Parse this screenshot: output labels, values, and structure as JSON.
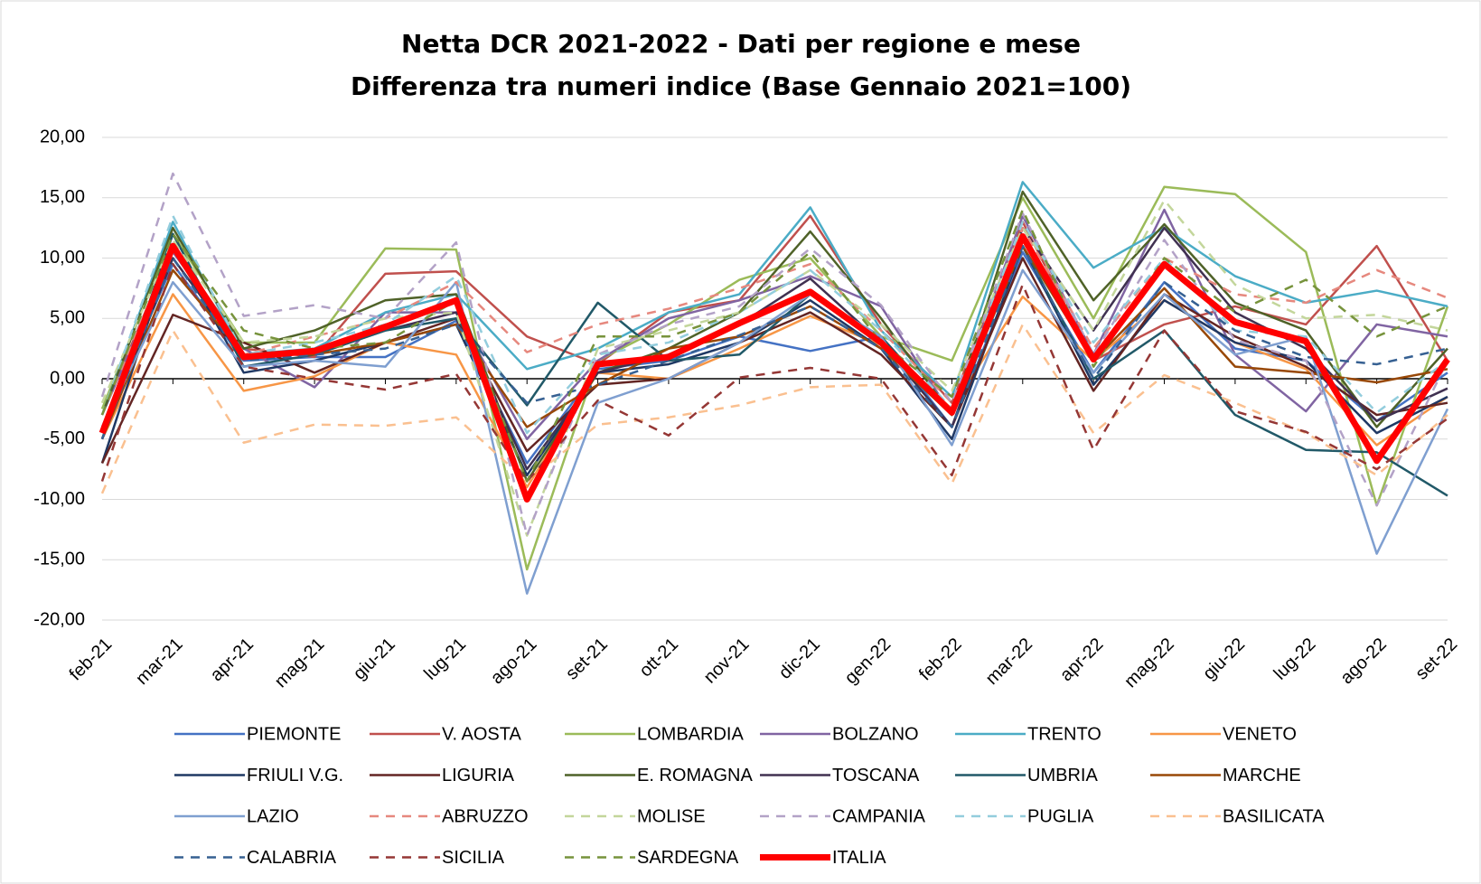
{
  "chart_data": {
    "type": "line",
    "title": [
      "Netta DCR 2021-2022 - Dati per regione e mese",
      "Differenza tra numeri indice (Base Gennaio 2021=100)"
    ],
    "categories": [
      "feb-21",
      "mar-21",
      "apr-21",
      "mag-21",
      "giu-21",
      "lug-21",
      "ago-21",
      "set-21",
      "ott-21",
      "nov-21",
      "dic-21",
      "gen-22",
      "feb-22",
      "mar-22",
      "apr-22",
      "mag-22",
      "giu-22",
      "lug-22",
      "ago-22",
      "set-22"
    ],
    "ylim": [
      -20,
      20
    ],
    "yticks": [
      {
        "value": -20,
        "label": "-20,00"
      },
      {
        "value": -15,
        "label": "-15,00"
      },
      {
        "value": -10,
        "label": "-10,00"
      },
      {
        "value": -5,
        "label": "-5,00"
      },
      {
        "value": 0,
        "label": "0,00"
      },
      {
        "value": 5,
        "label": "5,00"
      },
      {
        "value": 10,
        "label": "10,00"
      },
      {
        "value": 15,
        "label": "15,00"
      },
      {
        "value": 20,
        "label": "20,00"
      }
    ],
    "grid": true,
    "legend": "bottom",
    "series": [
      {
        "name": "PIEMONTE",
        "color": "#4472c4",
        "style": "solid",
        "values": [
          -4,
          9.5,
          1.5,
          1.8,
          1.8,
          4.8,
          -7,
          0.8,
          1.5,
          3.5,
          2.3,
          3.5,
          -4,
          10.5,
          0.5,
          8,
          2.5,
          1.5,
          -3.5,
          0.5
        ]
      },
      {
        "name": "V. AOSTA",
        "color": "#c0504d",
        "style": "solid",
        "values": [
          -3,
          11,
          2.5,
          1.8,
          8.7,
          8.9,
          3.5,
          1.2,
          5.5,
          6.5,
          13.5,
          4.5,
          -2,
          13,
          1.5,
          4.5,
          6,
          4.5,
          11,
          1.5
        ]
      },
      {
        "name": "LOMBARDIA",
        "color": "#9bbb59",
        "style": "solid",
        "values": [
          -2.5,
          12,
          3,
          3,
          10.8,
          10.7,
          -15.8,
          1.5,
          4.5,
          8.2,
          10,
          3.5,
          1.5,
          15,
          5,
          15.9,
          15.3,
          10.5,
          -10.5,
          6
        ]
      },
      {
        "name": "BOLZANO",
        "color": "#8064a2",
        "style": "solid",
        "values": [
          -3,
          10.5,
          2.5,
          -0.7,
          5.5,
          5.5,
          -5,
          1.5,
          5,
          6.5,
          8.5,
          6,
          -3,
          13.5,
          2,
          14,
          2,
          -2.7,
          4.5,
          3.5
        ]
      },
      {
        "name": "TRENTO",
        "color": "#4bacc6",
        "style": "solid",
        "values": [
          -3,
          13,
          2,
          2.5,
          5.5,
          7,
          0.8,
          2.5,
          5.5,
          7,
          14.2,
          4,
          -1.5,
          16.3,
          9.2,
          12.5,
          8.5,
          6.3,
          7.3,
          6
        ]
      },
      {
        "name": "VENETO",
        "color": "#f79646",
        "style": "solid",
        "values": [
          -5,
          7,
          -1,
          0.2,
          3,
          2,
          -9,
          0.5,
          0,
          2.5,
          5.2,
          2.8,
          -2.5,
          6.8,
          1.5,
          6.5,
          3,
          0.8,
          -5.5,
          -1.5
        ]
      },
      {
        "name": "FRIULI V.G.",
        "color": "#1f3864",
        "style": "solid",
        "values": [
          -7,
          11,
          0.5,
          1.5,
          3,
          4.5,
          -8,
          0.5,
          1.2,
          3,
          6.5,
          2.5,
          -5,
          11,
          -0.5,
          6.5,
          3,
          1.5,
          -4.5,
          -1.5
        ]
      },
      {
        "name": "LIGURIA",
        "color": "#632523",
        "style": "solid",
        "values": [
          -7,
          5.3,
          3,
          0.5,
          3,
          5,
          -6,
          -0.5,
          0,
          3,
          5.5,
          2,
          -4,
          10,
          -1,
          7,
          3.5,
          1,
          -3,
          -2
        ]
      },
      {
        "name": "E. ROMAGNA",
        "color": "#4f6228",
        "style": "solid",
        "values": [
          -3,
          12.5,
          2.5,
          4,
          6.5,
          7,
          -8.5,
          0.5,
          2.5,
          5.5,
          12.2,
          5,
          -3,
          15.5,
          6.5,
          12.8,
          6.3,
          4,
          -4,
          2.5
        ]
      },
      {
        "name": "TOSCANA",
        "color": "#403151",
        "style": "solid",
        "values": [
          -5,
          10,
          2,
          2,
          4,
          5.5,
          -7.5,
          0.5,
          2,
          4.5,
          8.3,
          3,
          -4,
          12.5,
          4,
          12.5,
          5.5,
          2.5,
          -3.5,
          -0.8
        ]
      },
      {
        "name": "UMBRIA",
        "color": "#215968",
        "style": "solid",
        "values": [
          -5,
          12,
          1,
          2,
          4,
          5,
          -2.2,
          6.3,
          1.5,
          2,
          7,
          3.5,
          -3,
          11,
          0,
          4,
          -3,
          -5.9,
          -6.1,
          -9.7
        ]
      },
      {
        "name": "MARCHE",
        "color": "#984807",
        "style": "solid",
        "values": [
          -5,
          9,
          2,
          2,
          3,
          4.5,
          -4,
          -0.5,
          2.5,
          3.5,
          6,
          2.5,
          -3,
          11,
          1.5,
          7.5,
          1,
          0.5,
          -0.3,
          0.8
        ]
      },
      {
        "name": "LAZIO",
        "color": "#7f9fd0",
        "style": "solid",
        "values": [
          -4,
          8,
          1,
          1.5,
          1,
          8,
          -17.8,
          -2,
          0,
          3,
          7,
          3.5,
          -5.5,
          9,
          0.5,
          7,
          2,
          3.5,
          -14.5,
          -2.5
        ]
      },
      {
        "name": "ABRUZZO",
        "color": "#e6887e",
        "style": "dashed",
        "values": [
          -3,
          11,
          2,
          3.5,
          5,
          8,
          2.2,
          4.5,
          5.8,
          7.5,
          9.5,
          4,
          -2,
          12.5,
          2.5,
          10,
          7,
          6.3,
          9,
          6.7
        ]
      },
      {
        "name": "MOLISE",
        "color": "#c3d69b",
        "style": "dashed",
        "values": [
          -2,
          11.5,
          3,
          3.5,
          5,
          5.5,
          -13,
          2.5,
          4,
          5.5,
          9,
          4.5,
          -1,
          12.5,
          4,
          14.8,
          7.8,
          5,
          5.3,
          4
        ]
      },
      {
        "name": "CAMPANIA",
        "color": "#b3a2c7",
        "style": "dashed",
        "values": [
          -1.5,
          17,
          5.2,
          6.1,
          5,
          11.3,
          -13,
          2,
          4.5,
          6,
          10.8,
          6.1,
          -2,
          13.7,
          2,
          11.5,
          3.2,
          1.5,
          -10.5,
          1.5
        ]
      },
      {
        "name": "PUGLIA",
        "color": "#93cddd",
        "style": "dashed",
        "values": [
          -3,
          13.5,
          2,
          3,
          4.5,
          8.5,
          -4.5,
          2,
          3,
          5.5,
          9,
          4,
          -2.5,
          13,
          3,
          10,
          4,
          3.5,
          -2.8,
          1.5
        ]
      },
      {
        "name": "BASILICATA",
        "color": "#fac090",
        "style": "dashed",
        "values": [
          -9.5,
          4,
          -5.3,
          -3.8,
          -3.9,
          -3.2,
          -8.5,
          -3.8,
          -3.2,
          -2.2,
          -0.7,
          -0.5,
          -8.7,
          4.5,
          -4.5,
          0.3,
          -2,
          -4.5,
          -8,
          -3
        ]
      },
      {
        "name": "CALABRIA",
        "color": "#366092",
        "style": "dashed",
        "values": [
          -5,
          10,
          1.5,
          2,
          2.5,
          4.5,
          -2,
          -0.5,
          1.5,
          3.6,
          6,
          2.5,
          -4,
          11,
          0,
          8,
          4,
          1.8,
          1.2,
          2.5
        ]
      },
      {
        "name": "SICILIA",
        "color": "#953735",
        "style": "dashed",
        "values": [
          -8.5,
          9.5,
          1,
          0,
          -0.9,
          0.4,
          -8.5,
          -1.8,
          -4.7,
          0.1,
          0.9,
          0,
          -8,
          7.8,
          -5.9,
          4,
          -2.7,
          -4.4,
          -7.5,
          -3.3
        ]
      },
      {
        "name": "SARDEGNA",
        "color": "#77933c",
        "style": "dashed",
        "values": [
          -3,
          12,
          4,
          2.5,
          3,
          6.5,
          -8.5,
          3.5,
          3.5,
          5.5,
          10.5,
          3,
          -1.5,
          14,
          1,
          10,
          5.5,
          8.2,
          3.5,
          6
        ]
      },
      {
        "name": "ITALIA",
        "color": "#ff0000",
        "style": "thick",
        "values": [
          -4.5,
          11,
          1.8,
          2.3,
          4.3,
          6.5,
          -10,
          1.2,
          1.8,
          4.6,
          7.2,
          3,
          -2.8,
          11.8,
          1.6,
          9.5,
          4.7,
          3.1,
          -6.8,
          1.6
        ]
      }
    ]
  }
}
